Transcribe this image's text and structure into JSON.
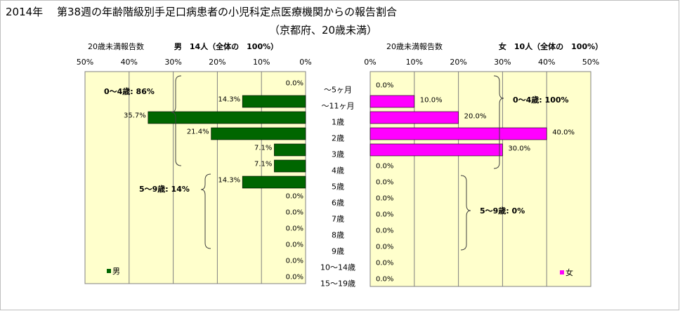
{
  "title": "2014年　 第38週の年齢階級別手足口病患者の小児科定点医療機関からの報告割合",
  "subtitle": "（京都府、20歳未満）",
  "colors": {
    "male": "#006600",
    "female": "#ff00ff",
    "plot_bg": "#ffffcc",
    "grid": "#808080"
  },
  "chart_data": [
    {
      "type": "bar",
      "orientation": "horizontal",
      "direction": "right-to-left",
      "header_label": "20歳未満報告数",
      "header_group": "男　14人（全体の　100%）",
      "xlim": [
        0,
        50
      ],
      "tick_labels": [
        "50%",
        "40%",
        "30%",
        "20%",
        "10%",
        "0%"
      ],
      "categories": [
        "～5ヶ月",
        "～11ヶ月",
        "1歳",
        "2歳",
        "3歳",
        "4歳",
        "5歳",
        "6歳",
        "7歳",
        "8歳",
        "9歳",
        "10～14歳",
        "15～19歳"
      ],
      "series": [
        {
          "name": "男",
          "values": [
            0.0,
            14.3,
            35.7,
            21.4,
            7.1,
            7.1,
            14.3,
            0.0,
            0.0,
            0.0,
            0.0,
            0.0,
            0.0
          ],
          "labels": [
            "0.0%",
            "14.3%",
            "35.7%",
            "21.4%",
            "7.1%",
            "7.1%",
            "14.3%",
            "0.0%",
            "0.0%",
            "0.0%",
            "0.0%",
            "0.0%",
            "0.0%"
          ]
        }
      ],
      "annotations": [
        "0～4歳: 86%",
        "5～9歳: 14%"
      ],
      "legend": "bottom-left",
      "grid": true
    },
    {
      "type": "bar",
      "orientation": "horizontal",
      "direction": "left-to-right",
      "header_label": "20歳未満報告数",
      "header_group": "女　10人（全体の　100%）",
      "xlim": [
        0,
        50
      ],
      "tick_labels": [
        "0%",
        "10%",
        "20%",
        "30%",
        "40%",
        "50%"
      ],
      "categories": [
        "～5ヶ月",
        "～11ヶ月",
        "1歳",
        "2歳",
        "3歳",
        "4歳",
        "5歳",
        "6歳",
        "7歳",
        "8歳",
        "9歳",
        "10～14歳",
        "15～19歳"
      ],
      "series": [
        {
          "name": "女",
          "values": [
            0.0,
            10.0,
            20.0,
            40.0,
            30.0,
            0.0,
            0.0,
            0.0,
            0.0,
            0.0,
            0.0,
            0.0,
            0.0
          ],
          "labels": [
            "0.0%",
            "10.0%",
            "20.0%",
            "40.0%",
            "30.0%",
            "0.0%",
            "0.0%",
            "0.0%",
            "0.0%",
            "0.0%",
            "0.0%",
            "0.0%",
            "0.0%"
          ]
        }
      ],
      "annotations": [
        "0～4歳: 100%",
        "5～9歳: 0%"
      ],
      "legend": "bottom-right",
      "grid": true
    }
  ]
}
